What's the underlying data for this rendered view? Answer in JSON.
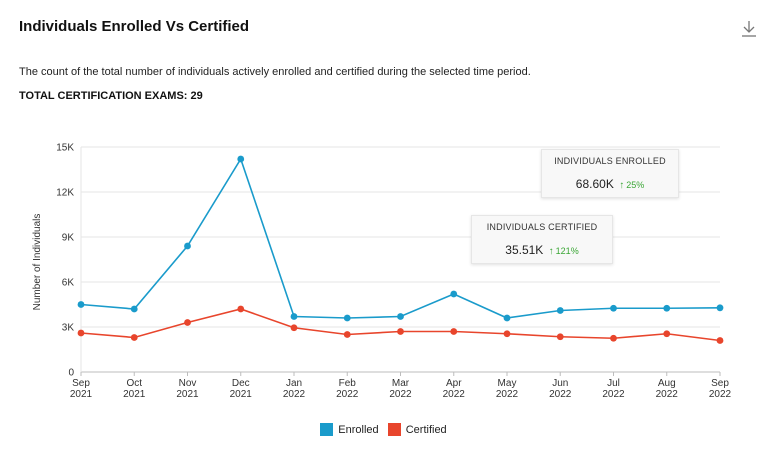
{
  "header": {
    "title": "Individuals Enrolled Vs Certified",
    "description": "The count of the total number of individuals actively enrolled and certified during the selected time period.",
    "total_label": "TOTAL CERTIFICATION EXAMS: 29",
    "download_icon": "download-icon"
  },
  "tooltips": {
    "enrolled": {
      "label": "INDIVIDUALS ENROLLED",
      "value": "68.60K",
      "change": "25%"
    },
    "certified": {
      "label": "INDIVIDUALS CERTIFIED",
      "value": "35.51K",
      "change": "121%"
    }
  },
  "chart_data": {
    "type": "line",
    "title": "Individuals Enrolled Vs Certified",
    "xlabel": "",
    "ylabel": "Number of Individuals",
    "ylim": [
      0,
      15000
    ],
    "yticks": [
      0,
      3000,
      6000,
      9000,
      12000,
      15000
    ],
    "ytick_labels": [
      "0",
      "3K",
      "6K",
      "9K",
      "12K",
      "15K"
    ],
    "categories": [
      [
        "Sep",
        "2021"
      ],
      [
        "Oct",
        "2021"
      ],
      [
        "Nov",
        "2021"
      ],
      [
        "Dec",
        "2021"
      ],
      [
        "Jan",
        "2022"
      ],
      [
        "Feb",
        "2022"
      ],
      [
        "Mar",
        "2022"
      ],
      [
        "Apr",
        "2022"
      ],
      [
        "May",
        "2022"
      ],
      [
        "Jun",
        "2022"
      ],
      [
        "Jul",
        "2022"
      ],
      [
        "Aug",
        "2022"
      ],
      [
        "Sep",
        "2022"
      ]
    ],
    "grid": true,
    "legend_position": "bottom-center",
    "series": [
      {
        "name": "Enrolled",
        "color": "#1a9bcb",
        "values": [
          4500,
          4200,
          8400,
          14200,
          3700,
          3600,
          3700,
          5200,
          3600,
          4100,
          4250,
          4250,
          4280
        ]
      },
      {
        "name": "Certified",
        "color": "#e8452c",
        "values": [
          2600,
          2300,
          3300,
          4200,
          2950,
          2500,
          2700,
          2700,
          2550,
          2350,
          2250,
          2550,
          2100
        ]
      }
    ]
  }
}
